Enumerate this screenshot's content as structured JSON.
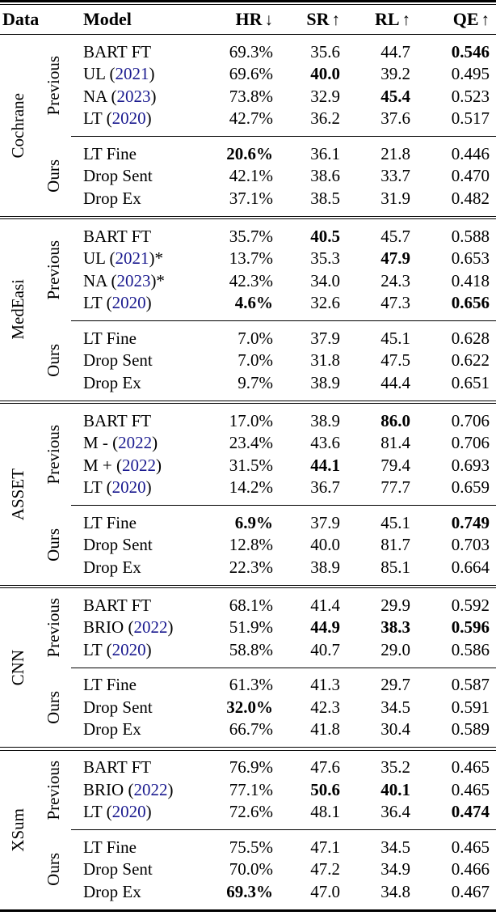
{
  "colors": {
    "citation": "#1a1a8f",
    "text": "#000000",
    "background": "#ffffff"
  },
  "header": {
    "data": "Data",
    "model": "Model",
    "hr": {
      "label": "HR",
      "arrow": "↓"
    },
    "sr": {
      "label": "SR",
      "arrow": "↑"
    },
    "rl": {
      "label": "RL",
      "arrow": "↑"
    },
    "qe": {
      "label": "QE",
      "arrow": "↑"
    }
  },
  "sections": [
    {
      "dataset": "Cochrane",
      "groups": [
        {
          "label": "Previous",
          "rows": [
            {
              "model": "BART FT",
              "year": null,
              "suffix": "",
              "hr": "69.3%",
              "sr": "35.6",
              "rl": "44.7",
              "qe": "0.546",
              "bold": [
                "qe"
              ]
            },
            {
              "model": "UL",
              "year": "2021",
              "suffix": "",
              "hr": "69.6%",
              "sr": "40.0",
              "rl": "39.2",
              "qe": "0.495",
              "bold": [
                "sr"
              ]
            },
            {
              "model": "NA",
              "year": "2023",
              "suffix": "",
              "hr": "73.8%",
              "sr": "32.9",
              "rl": "45.4",
              "qe": "0.523",
              "bold": [
                "rl"
              ]
            },
            {
              "model": "LT",
              "year": "2020",
              "suffix": "",
              "hr": "42.7%",
              "sr": "36.2",
              "rl": "37.6",
              "qe": "0.517",
              "bold": []
            }
          ]
        },
        {
          "label": "Ours",
          "rows": [
            {
              "model": "LT Fine",
              "year": null,
              "suffix": "",
              "hr": "20.6%",
              "sr": "36.1",
              "rl": "21.8",
              "qe": "0.446",
              "bold": [
                "hr"
              ]
            },
            {
              "model": "Drop Sent",
              "year": null,
              "suffix": "",
              "hr": "42.1%",
              "sr": "38.6",
              "rl": "33.7",
              "qe": "0.470",
              "bold": []
            },
            {
              "model": "Drop Ex",
              "year": null,
              "suffix": "",
              "hr": "37.1%",
              "sr": "38.5",
              "rl": "31.9",
              "qe": "0.482",
              "bold": []
            }
          ]
        }
      ]
    },
    {
      "dataset": "MedEasi",
      "groups": [
        {
          "label": "Previous",
          "rows": [
            {
              "model": "BART FT",
              "year": null,
              "suffix": "",
              "hr": "35.7%",
              "sr": "40.5",
              "rl": "45.7",
              "qe": "0.588",
              "bold": [
                "sr"
              ]
            },
            {
              "model": "UL",
              "year": "2021",
              "suffix": "*",
              "hr": "13.7%",
              "sr": "35.3",
              "rl": "47.9",
              "qe": "0.653",
              "bold": [
                "rl"
              ]
            },
            {
              "model": "NA",
              "year": "2023",
              "suffix": "*",
              "hr": "42.3%",
              "sr": "34.0",
              "rl": "24.3",
              "qe": "0.418",
              "bold": []
            },
            {
              "model": "LT",
              "year": "2020",
              "suffix": "",
              "hr": "4.6%",
              "sr": "32.6",
              "rl": "47.3",
              "qe": "0.656",
              "bold": [
                "hr",
                "qe"
              ]
            }
          ]
        },
        {
          "label": "Ours",
          "rows": [
            {
              "model": "LT Fine",
              "year": null,
              "suffix": "",
              "hr": "7.0%",
              "sr": "37.9",
              "rl": "45.1",
              "qe": "0.628",
              "bold": []
            },
            {
              "model": "Drop Sent",
              "year": null,
              "suffix": "",
              "hr": "7.0%",
              "sr": "31.8",
              "rl": "47.5",
              "qe": "0.622",
              "bold": []
            },
            {
              "model": "Drop Ex",
              "year": null,
              "suffix": "",
              "hr": "9.7%",
              "sr": "38.9",
              "rl": "44.4",
              "qe": "0.651",
              "bold": []
            }
          ]
        }
      ]
    },
    {
      "dataset": "ASSET",
      "groups": [
        {
          "label": "Previous",
          "rows": [
            {
              "model": "BART FT",
              "year": null,
              "suffix": "",
              "hr": "17.0%",
              "sr": "38.9",
              "rl": "86.0",
              "qe": "0.706",
              "bold": [
                "rl"
              ]
            },
            {
              "model": "M -",
              "year": "2022",
              "suffix": "",
              "hr": "23.4%",
              "sr": "43.6",
              "rl": "81.4",
              "qe": "0.706",
              "bold": []
            },
            {
              "model": "M +",
              "year": "2022",
              "suffix": "",
              "hr": "31.5%",
              "sr": "44.1",
              "rl": "79.4",
              "qe": "0.693",
              "bold": [
                "sr"
              ]
            },
            {
              "model": "LT",
              "year": "2020",
              "suffix": "",
              "hr": "14.2%",
              "sr": "36.7",
              "rl": "77.7",
              "qe": "0.659",
              "bold": []
            }
          ]
        },
        {
          "label": "Ours",
          "rows": [
            {
              "model": "LT Fine",
              "year": null,
              "suffix": "",
              "hr": "6.9%",
              "sr": "37.9",
              "rl": "45.1",
              "qe": "0.749",
              "bold": [
                "hr",
                "qe"
              ]
            },
            {
              "model": "Drop Sent",
              "year": null,
              "suffix": "",
              "hr": "12.8%",
              "sr": "40.0",
              "rl": "81.7",
              "qe": "0.703",
              "bold": []
            },
            {
              "model": "Drop Ex",
              "year": null,
              "suffix": "",
              "hr": "22.3%",
              "sr": "38.9",
              "rl": "85.1",
              "qe": "0.664",
              "bold": []
            }
          ]
        }
      ]
    },
    {
      "dataset": "CNN",
      "groups": [
        {
          "label": "Previous",
          "rows": [
            {
              "model": "BART FT",
              "year": null,
              "suffix": "",
              "hr": "68.1%",
              "sr": "41.4",
              "rl": "29.9",
              "qe": "0.592",
              "bold": []
            },
            {
              "model": "BRIO",
              "year": "2022",
              "suffix": "",
              "hr": "51.9%",
              "sr": "44.9",
              "rl": "38.3",
              "qe": "0.596",
              "bold": [
                "sr",
                "rl",
                "qe"
              ]
            },
            {
              "model": "LT",
              "year": "2020",
              "suffix": "",
              "hr": "58.8%",
              "sr": "40.7",
              "rl": "29.0",
              "qe": "0.586",
              "bold": []
            }
          ]
        },
        {
          "label": "Ours",
          "rows": [
            {
              "model": "LT Fine",
              "year": null,
              "suffix": "",
              "hr": "61.3%",
              "sr": "41.3",
              "rl": "29.7",
              "qe": "0.587",
              "bold": []
            },
            {
              "model": "Drop Sent",
              "year": null,
              "suffix": "",
              "hr": "32.0%",
              "sr": "42.3",
              "rl": "34.5",
              "qe": "0.591",
              "bold": [
                "hr"
              ]
            },
            {
              "model": "Drop Ex",
              "year": null,
              "suffix": "",
              "hr": "66.7%",
              "sr": "41.8",
              "rl": "30.4",
              "qe": "0.589",
              "bold": []
            }
          ]
        }
      ]
    },
    {
      "dataset": "XSum",
      "groups": [
        {
          "label": "Previous",
          "rows": [
            {
              "model": "BART FT",
              "year": null,
              "suffix": "",
              "hr": "76.9%",
              "sr": "47.6",
              "rl": "35.2",
              "qe": "0.465",
              "bold": []
            },
            {
              "model": "BRIO",
              "year": "2022",
              "suffix": "",
              "hr": "77.1%",
              "sr": "50.6",
              "rl": "40.1",
              "qe": "0.465",
              "bold": [
                "sr",
                "rl"
              ]
            },
            {
              "model": "LT",
              "year": "2020",
              "suffix": "",
              "hr": "72.6%",
              "sr": "48.1",
              "rl": "36.4",
              "qe": "0.474",
              "bold": [
                "qe"
              ]
            }
          ]
        },
        {
          "label": "Ours",
          "rows": [
            {
              "model": "LT Fine",
              "year": null,
              "suffix": "",
              "hr": "75.5%",
              "sr": "47.1",
              "rl": "34.5",
              "qe": "0.465",
              "bold": []
            },
            {
              "model": "Drop Sent",
              "year": null,
              "suffix": "",
              "hr": "70.0%",
              "sr": "47.2",
              "rl": "34.9",
              "qe": "0.466",
              "bold": []
            },
            {
              "model": "Drop Ex",
              "year": null,
              "suffix": "",
              "hr": "69.3%",
              "sr": "47.0",
              "rl": "34.8",
              "qe": "0.467",
              "bold": [
                "hr"
              ]
            }
          ]
        }
      ]
    }
  ]
}
